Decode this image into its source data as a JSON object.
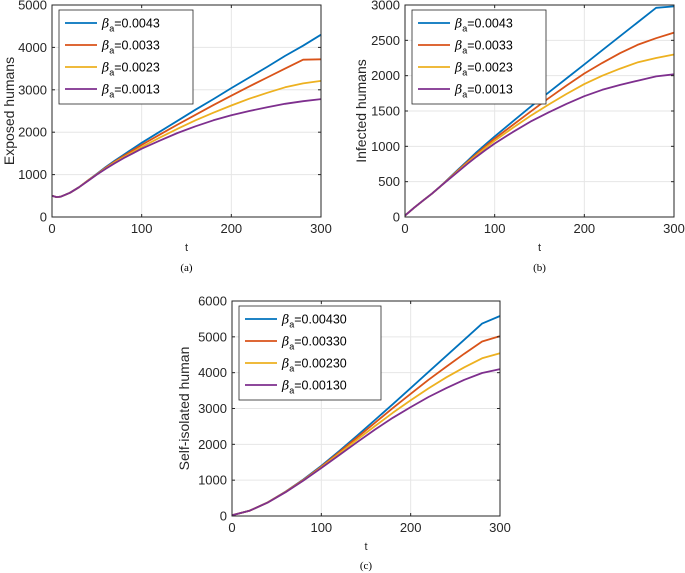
{
  "chart_data": [
    {
      "type": "line",
      "panel": "a",
      "caption": "(a)",
      "xlabel": "t",
      "ylabel": "Exposed humans",
      "xlim": [
        0,
        300
      ],
      "ylim": [
        0,
        5000
      ],
      "xticks": [
        "0",
        "100",
        "200",
        "300"
      ],
      "yticks": [
        "0",
        "1000",
        "2000",
        "3000",
        "4000",
        "5000"
      ],
      "grid": true,
      "legend_position": "top-left",
      "series": [
        {
          "name": "β_a=0.0043",
          "param": "0.0043",
          "color": "#0072BD",
          "x": [
            0,
            5,
            10,
            20,
            30,
            40,
            50,
            60,
            70,
            80,
            90,
            100,
            120,
            140,
            160,
            180,
            200,
            220,
            240,
            260,
            280,
            300
          ],
          "values": [
            500,
            470,
            480,
            570,
            700,
            860,
            1020,
            1180,
            1330,
            1470,
            1610,
            1750,
            2010,
            2270,
            2530,
            2780,
            3040,
            3290,
            3540,
            3800,
            4040,
            4300
          ]
        },
        {
          "name": "β_a=0.0033",
          "param": "0.0033",
          "color": "#D95319",
          "x": [
            0,
            5,
            10,
            20,
            30,
            40,
            50,
            60,
            70,
            80,
            90,
            100,
            120,
            140,
            160,
            180,
            200,
            220,
            240,
            260,
            280,
            300
          ],
          "values": [
            500,
            470,
            480,
            570,
            700,
            860,
            1010,
            1165,
            1310,
            1440,
            1570,
            1700,
            1940,
            2180,
            2410,
            2640,
            2860,
            3080,
            3290,
            3500,
            3710,
            3720
          ]
        },
        {
          "name": "β_a=0.0023",
          "param": "0.0023",
          "color": "#EDB120",
          "x": [
            0,
            5,
            10,
            20,
            30,
            40,
            50,
            60,
            70,
            80,
            90,
            100,
            120,
            140,
            160,
            180,
            200,
            220,
            240,
            260,
            280,
            300
          ],
          "values": [
            500,
            470,
            480,
            570,
            700,
            855,
            1005,
            1150,
            1290,
            1410,
            1530,
            1650,
            1870,
            2080,
            2280,
            2460,
            2630,
            2790,
            2930,
            3060,
            3150,
            3210
          ]
        },
        {
          "name": "β_a=0.0013",
          "param": "0.0013",
          "color": "#7E2F8E",
          "x": [
            0,
            5,
            10,
            20,
            30,
            40,
            50,
            60,
            70,
            80,
            90,
            100,
            120,
            140,
            160,
            180,
            200,
            220,
            240,
            260,
            280,
            300
          ],
          "values": [
            500,
            470,
            480,
            570,
            700,
            850,
            1000,
            1140,
            1270,
            1390,
            1500,
            1610,
            1800,
            1980,
            2140,
            2280,
            2400,
            2500,
            2590,
            2670,
            2730,
            2780
          ]
        }
      ]
    },
    {
      "type": "line",
      "panel": "b",
      "caption": "(b)",
      "xlabel": "t",
      "ylabel": "Infected humans",
      "xlim": [
        0,
        300
      ],
      "ylim": [
        0,
        3000
      ],
      "xticks": [
        "0",
        "100",
        "200",
        "300"
      ],
      "yticks": [
        "0",
        "500",
        "1000",
        "1500",
        "2000",
        "2500",
        "3000"
      ],
      "grid": true,
      "legend_position": "top-left",
      "series": [
        {
          "name": "β_a=0.0043",
          "param": "0.0043",
          "color": "#0072BD",
          "x": [
            0,
            10,
            20,
            30,
            40,
            50,
            60,
            70,
            80,
            90,
            100,
            120,
            140,
            160,
            180,
            200,
            220,
            240,
            260,
            280,
            300
          ],
          "values": [
            20,
            130,
            230,
            330,
            440,
            560,
            680,
            800,
            920,
            1030,
            1140,
            1350,
            1560,
            1760,
            1960,
            2160,
            2360,
            2560,
            2760,
            2960,
            2980
          ]
        },
        {
          "name": "β_a=0.0033",
          "param": "0.0033",
          "color": "#D95319",
          "x": [
            0,
            10,
            20,
            30,
            40,
            50,
            60,
            70,
            80,
            90,
            100,
            120,
            140,
            160,
            180,
            200,
            220,
            240,
            260,
            280,
            300
          ],
          "values": [
            20,
            130,
            230,
            330,
            440,
            555,
            670,
            785,
            895,
            1005,
            1110,
            1300,
            1490,
            1680,
            1860,
            2030,
            2180,
            2320,
            2440,
            2530,
            2610
          ]
        },
        {
          "name": "β_a=0.0023",
          "param": "0.0023",
          "color": "#EDB120",
          "x": [
            0,
            10,
            20,
            30,
            40,
            50,
            60,
            70,
            80,
            90,
            100,
            120,
            140,
            160,
            180,
            200,
            220,
            240,
            260,
            280,
            300
          ],
          "values": [
            20,
            130,
            230,
            330,
            440,
            550,
            660,
            770,
            875,
            980,
            1080,
            1260,
            1430,
            1590,
            1740,
            1880,
            2000,
            2100,
            2190,
            2250,
            2300
          ]
        },
        {
          "name": "β_a=0.0013",
          "param": "0.0013",
          "color": "#7E2F8E",
          "x": [
            0,
            10,
            20,
            30,
            40,
            50,
            60,
            70,
            80,
            90,
            100,
            120,
            140,
            160,
            180,
            200,
            220,
            240,
            260,
            280,
            300
          ],
          "values": [
            20,
            130,
            230,
            330,
            440,
            545,
            650,
            755,
            855,
            950,
            1040,
            1200,
            1350,
            1480,
            1600,
            1710,
            1800,
            1870,
            1930,
            1990,
            2020
          ]
        }
      ]
    },
    {
      "type": "line",
      "panel": "c",
      "caption": "(c)",
      "xlabel": "t",
      "ylabel": "Self-isolated human",
      "xlim": [
        0,
        300
      ],
      "ylim": [
        0,
        6000
      ],
      "xticks": [
        "0",
        "100",
        "200",
        "300"
      ],
      "yticks": [
        "0",
        "1000",
        "2000",
        "3000",
        "4000",
        "5000",
        "6000"
      ],
      "grid": true,
      "legend_position": "top-left",
      "series": [
        {
          "name": "β_a=0.00430",
          "param": "0.00430",
          "color": "#0072BD",
          "x": [
            0,
            20,
            40,
            60,
            80,
            100,
            120,
            140,
            160,
            180,
            200,
            220,
            240,
            260,
            280,
            300
          ],
          "values": [
            20,
            150,
            380,
            680,
            1020,
            1400,
            1810,
            2240,
            2680,
            3120,
            3570,
            4020,
            4470,
            4920,
            5370,
            5580
          ]
        },
        {
          "name": "β_a=0.00330",
          "param": "0.00330",
          "color": "#D95319",
          "x": [
            0,
            20,
            40,
            60,
            80,
            100,
            120,
            140,
            160,
            180,
            200,
            220,
            240,
            260,
            280,
            300
          ],
          "values": [
            20,
            150,
            380,
            675,
            1010,
            1380,
            1780,
            2190,
            2600,
            3010,
            3410,
            3800,
            4170,
            4530,
            4870,
            5020
          ]
        },
        {
          "name": "β_a=0.00230",
          "param": "0.00230",
          "color": "#EDB120",
          "x": [
            0,
            20,
            40,
            60,
            80,
            100,
            120,
            140,
            160,
            180,
            200,
            220,
            240,
            260,
            280,
            300
          ],
          "values": [
            20,
            150,
            378,
            670,
            1000,
            1360,
            1740,
            2130,
            2510,
            2880,
            3230,
            3560,
            3870,
            4150,
            4400,
            4540
          ]
        },
        {
          "name": "β_a=0.00130",
          "param": "0.00130",
          "color": "#7E2F8E",
          "x": [
            0,
            20,
            40,
            60,
            80,
            100,
            120,
            140,
            160,
            180,
            200,
            220,
            240,
            260,
            280,
            300
          ],
          "values": [
            20,
            150,
            375,
            665,
            990,
            1340,
            1700,
            2060,
            2410,
            2740,
            3040,
            3320,
            3570,
            3800,
            3990,
            4100
          ]
        }
      ]
    }
  ],
  "beta_symbol": "β",
  "beta_subscript": "a",
  "legend_prefix": "="
}
